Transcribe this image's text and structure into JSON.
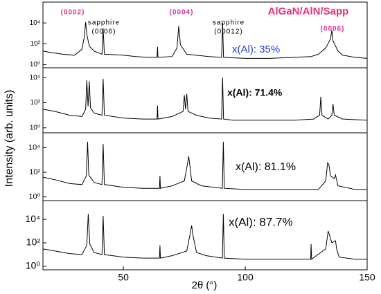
{
  "title": "AlGaN/AlN/Sapp",
  "ylabel": "Intensity (arb. units)",
  "xlabel": "2θ (°)",
  "annotations": [
    {
      "text": "(0002)",
      "color": "#e0309a"
    },
    {
      "text": "sapphire",
      "color": "#000000"
    },
    {
      "text": "(0006)",
      "color": "#000000"
    },
    {
      "text": "(0004)",
      "color": "#e0309a"
    },
    {
      "text": "sapphire",
      "color": "#000000"
    },
    {
      "text": "(00012)",
      "color": "#000000"
    },
    {
      "text": "(0006)",
      "color": "#e0309a"
    }
  ],
  "chart_data": [
    {
      "type": "line",
      "log_y": true,
      "xlim": [
        17,
        150
      ],
      "ylim": [
        0.5,
        1000000
      ],
      "yticks": [
        {
          "value": 1,
          "label": "10⁰"
        },
        {
          "value": 100,
          "label": "10²"
        },
        {
          "value": 10000,
          "label": "10⁴"
        }
      ],
      "label": "x(Al): 35%",
      "label_color": "#2040d0",
      "color": "#000000",
      "x": [
        17,
        20,
        25,
        30,
        33,
        34,
        34.5,
        35,
        36,
        38,
        41.2,
        41.7,
        42.2,
        50,
        55,
        60,
        63.8,
        64,
        64.2,
        70,
        72,
        72.7,
        73.4,
        76,
        85,
        90.3,
        90.7,
        91.1,
        100,
        110,
        120,
        127,
        130,
        133,
        135,
        135.5,
        136,
        138,
        140,
        145,
        150
      ],
      "values": [
        20,
        15,
        10,
        8,
        30,
        500,
        12000,
        800,
        60,
        20,
        10,
        3000,
        10,
        8,
        6,
        5,
        5,
        50,
        5,
        6,
        40,
        5000,
        80,
        10,
        6,
        5,
        10000,
        5,
        4,
        4,
        5,
        6,
        10,
        40,
        300,
        2000,
        200,
        20,
        8,
        5,
        4
      ]
    },
    {
      "type": "line",
      "log_y": true,
      "xlim": [
        17,
        150
      ],
      "ylim": [
        0.4,
        60000
      ],
      "yticks": [
        {
          "value": 1,
          "label": "10⁰"
        },
        {
          "value": 100,
          "label": "10²"
        },
        {
          "value": 10000,
          "label": "10⁴"
        }
      ],
      "label": "x(Al): 71.4%",
      "label_color": "#000000",
      "color": "#000000",
      "x": [
        17,
        22,
        28,
        33,
        34.5,
        35,
        35.5,
        36,
        36.5,
        38,
        41.2,
        41.7,
        42.2,
        50,
        58,
        63.8,
        64,
        64.2,
        70,
        74.5,
        75,
        75.5,
        76,
        76.5,
        80,
        85,
        90.3,
        90.7,
        91.1,
        95,
        100,
        110,
        120,
        128,
        130.5,
        131,
        131.5,
        134,
        135.5,
        136,
        136.5,
        140,
        150
      ],
      "values": [
        30,
        20,
        10,
        8,
        30,
        6000,
        50,
        5000,
        40,
        15,
        10,
        8000,
        10,
        6,
        5,
        5,
        60,
        5,
        8,
        20,
        400,
        30,
        500,
        20,
        10,
        6,
        5,
        10000,
        5,
        4,
        4,
        4,
        4,
        5,
        10,
        300,
        10,
        5,
        10,
        80,
        10,
        5,
        4
      ]
    },
    {
      "type": "line",
      "log_y": true,
      "xlim": [
        17,
        150
      ],
      "ylim": [
        0.5,
        160000
      ],
      "yticks": [
        {
          "value": 1,
          "label": "10⁰"
        },
        {
          "value": 100,
          "label": "10²"
        },
        {
          "value": 10000,
          "label": "10⁴"
        }
      ],
      "label": "x(Al): 81.1%",
      "label_color": "#000000",
      "color": "#000000",
      "x": [
        17,
        22,
        28,
        33,
        34.8,
        35.3,
        35.8,
        38,
        41.2,
        41.7,
        42.2,
        50,
        58,
        64.8,
        65,
        65.2,
        70,
        75,
        76.3,
        76.8,
        77.3,
        78,
        82,
        90.6,
        91,
        91.4,
        100,
        110,
        120,
        130,
        133,
        133.8,
        134.3,
        135,
        136.5,
        137,
        138,
        145,
        150
      ],
      "values": [
        40,
        25,
        12,
        10,
        50,
        30000,
        60,
        15,
        10,
        20000,
        10,
        6,
        5,
        5,
        50,
        5,
        8,
        20,
        500,
        2000,
        300,
        20,
        8,
        5,
        30000,
        5,
        4,
        4,
        4,
        4,
        20,
        600,
        400,
        50,
        30,
        60,
        8,
        4,
        4
      ]
    },
    {
      "type": "line",
      "log_y": true,
      "xlim": [
        17,
        150
      ],
      "ylim": [
        0.5,
        400000
      ],
      "yticks": [
        {
          "value": 1,
          "label": "10⁰"
        },
        {
          "value": 100,
          "label": "10²"
        },
        {
          "value": 10000,
          "label": "10⁴"
        }
      ],
      "xticks": [
        50,
        100,
        150
      ],
      "label": "x(Al): 87.7%",
      "label_color": "#000000",
      "color": "#000000",
      "x": [
        17,
        22,
        28,
        33,
        35,
        35.6,
        36.2,
        38,
        41.2,
        41.7,
        42.2,
        50,
        58,
        64.8,
        65,
        65.2,
        70,
        76,
        77.5,
        78,
        78.5,
        80,
        84,
        90.6,
        91,
        91.4,
        100,
        110,
        120,
        126.8,
        127,
        127.2,
        133,
        134,
        134.5,
        135.5,
        137,
        137.5,
        138.5,
        145,
        150
      ],
      "values": [
        30,
        20,
        12,
        10,
        60,
        30000,
        80,
        15,
        10,
        20000,
        10,
        6,
        5,
        5,
        60,
        5,
        8,
        20,
        800,
        3000,
        500,
        15,
        8,
        5,
        30000,
        5,
        4,
        4,
        4,
        4,
        80,
        4,
        30,
        1000,
        500,
        100,
        150,
        30,
        6,
        4,
        4
      ]
    }
  ]
}
